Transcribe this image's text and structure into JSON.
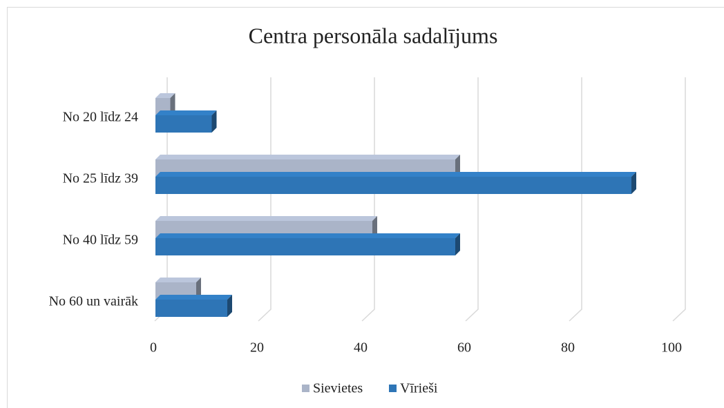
{
  "chart_data": {
    "type": "bar3d_horizontal",
    "title": "Centra personāla sadalījums",
    "categories": [
      "No 20 līdz 24",
      "No 25 līdz 39",
      "No 40 līdz 59",
      "No 60 un vairāk"
    ],
    "series": [
      {
        "name": "Sievietes",
        "color": "#aab4c8",
        "values": [
          3,
          58,
          42,
          8
        ]
      },
      {
        "name": "Vīrieši",
        "color": "#2e75b6",
        "values": [
          11,
          92,
          58,
          14
        ]
      }
    ],
    "xlim": [
      0,
      100
    ],
    "xticks": [
      0,
      20,
      40,
      60,
      80,
      100
    ],
    "grid": true,
    "legend": "bottom"
  }
}
